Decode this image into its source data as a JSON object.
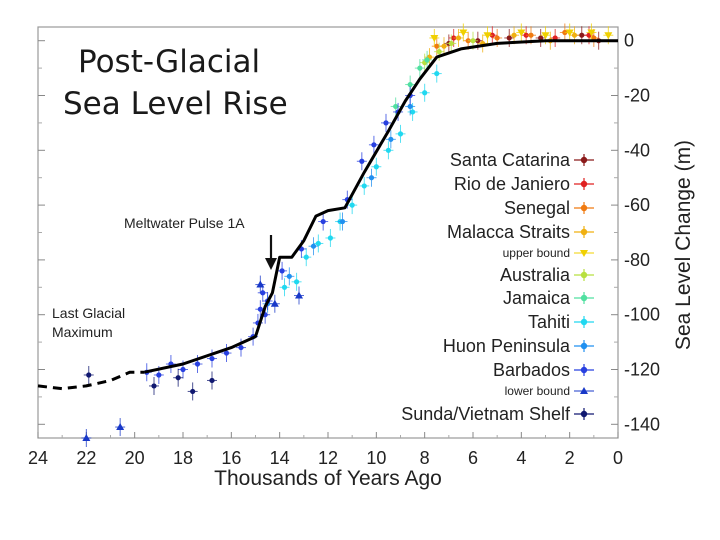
{
  "chart_data": {
    "type": "scatter",
    "title_lines": [
      "Post-Glacial",
      "Sea Level Rise"
    ],
    "xlabel": "Thousands of Years Ago",
    "ylabel": "Sea Level Change (m)",
    "xlim": [
      24,
      0
    ],
    "ylim": [
      -145,
      5
    ],
    "x_ticks": [
      24,
      22,
      20,
      18,
      16,
      14,
      12,
      10,
      8,
      6,
      4,
      2,
      0
    ],
    "y_ticks": [
      0,
      -20,
      -40,
      -60,
      -80,
      -100,
      -120,
      -140
    ],
    "grid": false,
    "legend_position": "right",
    "legend": [
      {
        "name": "Santa Catarina",
        "color": "#8b1a1a",
        "marker": "dot",
        "size": "large"
      },
      {
        "name": "Rio de Janiero",
        "color": "#e02020",
        "marker": "dot",
        "size": "large"
      },
      {
        "name": "Senegal",
        "color": "#f07a10",
        "marker": "dot",
        "size": "large"
      },
      {
        "name": "Malacca Straits",
        "color": "#f0b010",
        "marker": "dot",
        "size": "large"
      },
      {
        "name": "upper bound",
        "color": "#f0d000",
        "marker": "triangle-down",
        "size": "small"
      },
      {
        "name": "Australia",
        "color": "#b8e040",
        "marker": "dot",
        "size": "large"
      },
      {
        "name": "Jamaica",
        "color": "#50e0a0",
        "marker": "dot",
        "size": "large"
      },
      {
        "name": "Tahiti",
        "color": "#20d8f0",
        "marker": "dot",
        "size": "large"
      },
      {
        "name": "Huon Peninsula",
        "color": "#2090f0",
        "marker": "dot",
        "size": "large"
      },
      {
        "name": "Barbados",
        "color": "#2840e0",
        "marker": "dot",
        "size": "large"
      },
      {
        "name": "lower bound",
        "color": "#1838c8",
        "marker": "triangle-up",
        "size": "small"
      },
      {
        "name": "Sunda/Vietnam Shelf",
        "color": "#101870",
        "marker": "dot",
        "size": "large"
      }
    ],
    "annotations": {
      "mwp": "Meltwater Pulse 1A",
      "lgm_lines": [
        "Last Glacial",
        "Maximum"
      ]
    },
    "trend_line": {
      "name": "Sea level curve",
      "points": [
        [
          19.6,
          -121
        ],
        [
          18,
          -118
        ],
        [
          16,
          -112
        ],
        [
          15,
          -108
        ],
        [
          14.6,
          -97
        ],
        [
          14.3,
          -92
        ],
        [
          14.0,
          -79
        ],
        [
          13.5,
          -79
        ],
        [
          13.0,
          -73
        ],
        [
          12.5,
          -64
        ],
        [
          12.0,
          -62
        ],
        [
          11.3,
          -61
        ],
        [
          10.5,
          -48
        ],
        [
          9.5,
          -33
        ],
        [
          8.8,
          -22
        ],
        [
          8.2,
          -14
        ],
        [
          7.5,
          -6
        ],
        [
          6.5,
          -3
        ],
        [
          5,
          -1
        ],
        [
          3,
          0
        ],
        [
          1,
          0
        ],
        [
          0,
          0
        ]
      ]
    },
    "trend_extension": {
      "name": "LGM dashed curve",
      "points": [
        [
          24,
          -126
        ],
        [
          23,
          -127
        ],
        [
          22,
          -126
        ],
        [
          21,
          -124
        ],
        [
          20.2,
          -121
        ],
        [
          19.6,
          -121
        ]
      ]
    },
    "series": [
      {
        "name": "Santa Catarina",
        "points": [
          [
            7.0,
            -1
          ],
          [
            5.8,
            0
          ],
          [
            4.5,
            1
          ],
          [
            3.2,
            1
          ],
          [
            1.5,
            2
          ],
          [
            0.8,
            0
          ]
        ]
      },
      {
        "name": "Rio de Janiero",
        "points": [
          [
            6.8,
            1
          ],
          [
            5.2,
            2
          ],
          [
            3.8,
            2
          ],
          [
            2.6,
            1
          ],
          [
            1.2,
            2
          ]
        ]
      },
      {
        "name": "Senegal",
        "points": [
          [
            7.5,
            -2
          ],
          [
            6.2,
            0
          ],
          [
            5.0,
            1
          ],
          [
            3.6,
            2
          ],
          [
            2.2,
            3
          ],
          [
            1.0,
            1
          ]
        ]
      },
      {
        "name": "Malacca Straits",
        "points": [
          [
            7.8,
            -6
          ],
          [
            7.2,
            -2
          ],
          [
            6.6,
            1
          ],
          [
            5.6,
            -1
          ],
          [
            4.3,
            2
          ],
          [
            2.8,
            0
          ],
          [
            1.8,
            2
          ]
        ]
      },
      {
        "name": "upper bound",
        "points": [
          [
            7.6,
            1
          ],
          [
            6.4,
            3
          ],
          [
            5.4,
            2
          ],
          [
            4.0,
            3
          ],
          [
            3.0,
            2
          ],
          [
            2.0,
            3
          ],
          [
            1.1,
            3
          ],
          [
            0.4,
            2
          ]
        ]
      },
      {
        "name": "Australia",
        "points": [
          [
            8.0,
            -8
          ],
          [
            7.4,
            -4
          ],
          [
            6.9,
            -1
          ],
          [
            6.0,
            0
          ]
        ]
      },
      {
        "name": "Jamaica",
        "points": [
          [
            9.2,
            -24
          ],
          [
            8.6,
            -16
          ],
          [
            8.2,
            -10
          ],
          [
            7.9,
            -7
          ]
        ]
      },
      {
        "name": "Tahiti",
        "points": [
          [
            13.8,
            -90
          ],
          [
            13.3,
            -88
          ],
          [
            12.9,
            -79
          ],
          [
            12.4,
            -74
          ],
          [
            11.9,
            -72
          ],
          [
            11.5,
            -66
          ],
          [
            11.0,
            -60
          ],
          [
            10.5,
            -53
          ],
          [
            10.0,
            -46
          ],
          [
            9.5,
            -40
          ],
          [
            9.0,
            -34
          ],
          [
            8.5,
            -26
          ],
          [
            8.0,
            -19
          ],
          [
            7.5,
            -12
          ]
        ]
      },
      {
        "name": "Huon Peninsula",
        "points": [
          [
            14.5,
            -96
          ],
          [
            13.6,
            -86
          ],
          [
            12.6,
            -75
          ],
          [
            11.4,
            -66
          ],
          [
            10.2,
            -50
          ],
          [
            9.4,
            -36
          ],
          [
            8.6,
            -24
          ]
        ]
      },
      {
        "name": "Barbados",
        "points": [
          [
            19.5,
            -121
          ],
          [
            19.0,
            -122
          ],
          [
            18.5,
            -118
          ],
          [
            18.0,
            -120
          ],
          [
            17.4,
            -118
          ],
          [
            16.8,
            -116
          ],
          [
            16.2,
            -114
          ],
          [
            15.6,
            -112
          ],
          [
            15.1,
            -108
          ],
          [
            14.9,
            -103
          ],
          [
            14.8,
            -98
          ],
          [
            14.7,
            -92
          ],
          [
            14.6,
            -100
          ],
          [
            14.5,
            -95
          ],
          [
            13.9,
            -84
          ],
          [
            13.1,
            -76
          ],
          [
            12.2,
            -66
          ],
          [
            11.2,
            -58
          ],
          [
            10.6,
            -44
          ],
          [
            10.1,
            -38
          ],
          [
            9.6,
            -30
          ],
          [
            9.1,
            -26
          ],
          [
            8.6,
            -20
          ]
        ]
      },
      {
        "name": "lower bound",
        "points": [
          [
            22.0,
            -145
          ],
          [
            20.6,
            -141
          ],
          [
            14.8,
            -89
          ],
          [
            14.2,
            -96
          ],
          [
            13.2,
            -93
          ]
        ]
      },
      {
        "name": "Sunda/Vietnam Shelf",
        "points": [
          [
            21.9,
            -122
          ],
          [
            19.2,
            -126
          ],
          [
            18.2,
            -123
          ],
          [
            17.6,
            -128
          ],
          [
            16.8,
            -124
          ]
        ]
      }
    ]
  }
}
